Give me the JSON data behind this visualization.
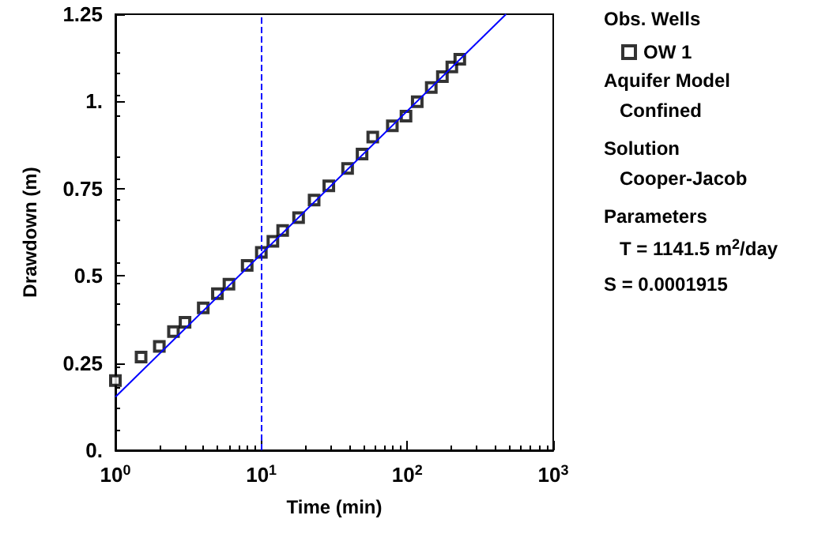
{
  "chart_data": {
    "type": "scatter",
    "xlabel": "Time (min)",
    "ylabel": "Drawdown (m)",
    "log": "x",
    "legend": "right",
    "legend_title": "Obs. Wells",
    "marker": "square",
    "grid": false,
    "xlim": [
      1,
      1000
    ],
    "xticks": [
      {
        "value": 1,
        "label": "10$^{0}$"
      },
      {
        "value": 10,
        "label": "10$^{1}$"
      },
      {
        "value": 100,
        "label": "10$^{2}$"
      },
      {
        "value": 1000,
        "label": "10$^{3}$"
      }
    ],
    "ylim": [
      0,
      1.25
    ],
    "yticks": [
      {
        "value": 0,
        "label": "0."
      },
      0.25,
      0.5,
      0.75,
      {
        "value": 1,
        "label": "1."
      },
      1.25
    ],
    "series": [
      {
        "name": "OW 1",
        "color": "#000000",
        "x": [
          1,
          1.5,
          2,
          2.5,
          3,
          4,
          5,
          6,
          8,
          10,
          12,
          14,
          18,
          23,
          29,
          39,
          49,
          58,
          79,
          98,
          117,
          146,
          174,
          202,
          229
        ],
        "values": [
          0.2,
          0.267,
          0.298,
          0.34,
          0.367,
          0.408,
          0.449,
          0.476,
          0.53,
          0.567,
          0.599,
          0.63,
          0.667,
          0.717,
          0.758,
          0.808,
          0.849,
          0.898,
          0.93,
          0.958,
          0.999,
          1.04,
          1.071,
          1.099,
          1.121
        ]
      },
      {
        "type": "line",
        "color": "#0000ff",
        "line_style": "solid",
        "marker": "none",
        "x": [
          1,
          475
        ],
        "values": [
          0.153,
          1.25
        ]
      }
    ],
    "ref_lines": [
      {
        "axis": "x",
        "value": 10,
        "color": "#0000ff",
        "line_style": "dashed"
      }
    ],
    "annotations": [
      "Aquifer Model",
      "Confined",
      "Solution",
      "Cooper-Jacob",
      "Parameters",
      "T = 1141.5 m$^{2}$/day",
      "S = 0.0001915"
    ]
  }
}
